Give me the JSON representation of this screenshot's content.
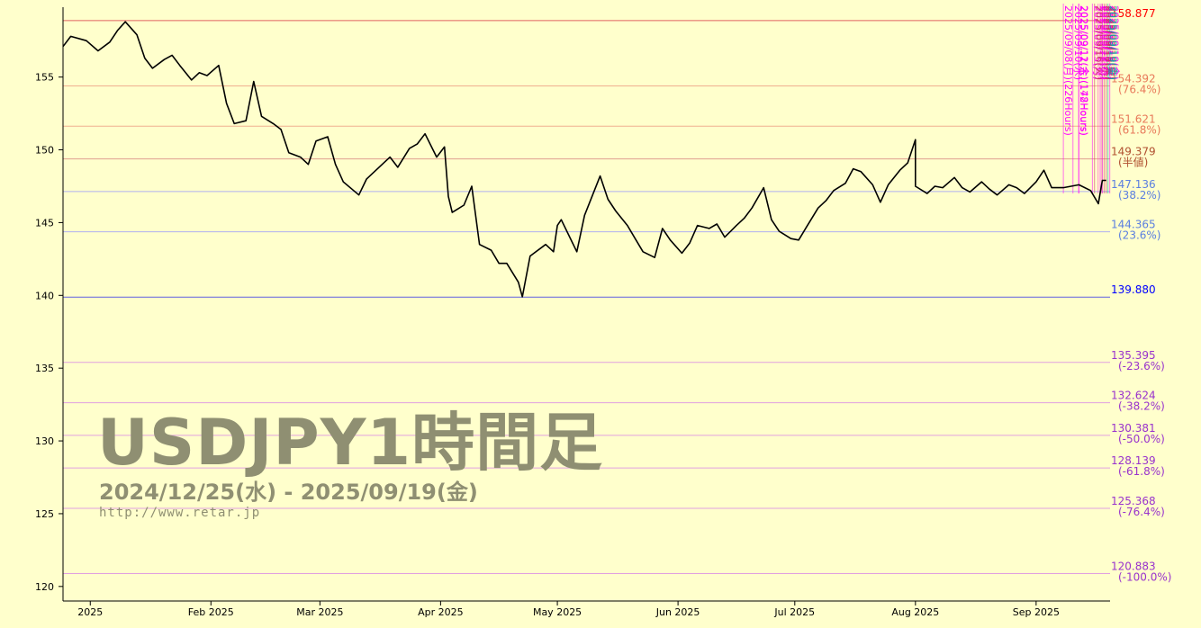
{
  "watermark": {
    "title": "USDJPY1時間足",
    "range": "2024/12/25(水) - 2025/09/19(金)",
    "url": "http://www.retar.jp"
  },
  "chart_data": {
    "type": "line",
    "series": [
      {
        "color": "#000000",
        "points": [
          [
            "2024-12-25",
            157.1
          ],
          [
            "2024-12-27",
            157.8
          ],
          [
            "2024-12-31",
            157.5
          ],
          [
            "2025-01-03",
            156.8
          ],
          [
            "2025-01-06",
            157.4
          ],
          [
            "2025-01-08",
            158.2
          ],
          [
            "2025-01-10",
            158.8
          ],
          [
            "2025-01-13",
            157.9
          ],
          [
            "2025-01-15",
            156.3
          ],
          [
            "2025-01-17",
            155.6
          ],
          [
            "2025-01-20",
            156.2
          ],
          [
            "2025-01-22",
            156.5
          ],
          [
            "2025-01-24",
            155.8
          ],
          [
            "2025-01-27",
            154.8
          ],
          [
            "2025-01-29",
            155.3
          ],
          [
            "2025-01-31",
            155.1
          ],
          [
            "2025-02-03",
            155.8
          ],
          [
            "2025-02-05",
            153.2
          ],
          [
            "2025-02-07",
            151.8
          ],
          [
            "2025-02-10",
            152.0
          ],
          [
            "2025-02-12",
            154.7
          ],
          [
            "2025-02-14",
            152.3
          ],
          [
            "2025-02-17",
            151.8
          ],
          [
            "2025-02-19",
            151.4
          ],
          [
            "2025-02-21",
            149.8
          ],
          [
            "2025-02-24",
            149.5
          ],
          [
            "2025-02-26",
            149.0
          ],
          [
            "2025-02-28",
            150.6
          ],
          [
            "2025-03-03",
            150.9
          ],
          [
            "2025-03-05",
            149.0
          ],
          [
            "2025-03-07",
            147.8
          ],
          [
            "2025-03-11",
            146.9
          ],
          [
            "2025-03-13",
            148.0
          ],
          [
            "2025-03-17",
            149.0
          ],
          [
            "2025-03-19",
            149.5
          ],
          [
            "2025-03-21",
            148.8
          ],
          [
            "2025-03-24",
            150.1
          ],
          [
            "2025-03-26",
            150.4
          ],
          [
            "2025-03-28",
            151.1
          ],
          [
            "2025-03-31",
            149.5
          ],
          [
            "2025-04-02",
            150.2
          ],
          [
            "2025-04-03",
            146.8
          ],
          [
            "2025-04-04",
            145.7
          ],
          [
            "2025-04-07",
            146.2
          ],
          [
            "2025-04-09",
            147.5
          ],
          [
            "2025-04-11",
            143.5
          ],
          [
            "2025-04-14",
            143.1
          ],
          [
            "2025-04-16",
            142.2
          ],
          [
            "2025-04-18",
            142.2
          ],
          [
            "2025-04-21",
            140.9
          ],
          [
            "2025-04-22",
            139.9
          ],
          [
            "2025-04-24",
            142.7
          ],
          [
            "2025-04-28",
            143.5
          ],
          [
            "2025-04-30",
            143.0
          ],
          [
            "2025-05-01",
            144.8
          ],
          [
            "2025-05-02",
            145.2
          ],
          [
            "2025-05-06",
            143.0
          ],
          [
            "2025-05-08",
            145.5
          ],
          [
            "2025-05-12",
            148.2
          ],
          [
            "2025-05-14",
            146.6
          ],
          [
            "2025-05-16",
            145.8
          ],
          [
            "2025-05-19",
            144.8
          ],
          [
            "2025-05-21",
            143.9
          ],
          [
            "2025-05-23",
            143.0
          ],
          [
            "2025-05-26",
            142.6
          ],
          [
            "2025-05-28",
            144.6
          ],
          [
            "2025-05-30",
            143.8
          ],
          [
            "2025-06-02",
            142.9
          ],
          [
            "2025-06-04",
            143.6
          ],
          [
            "2025-06-06",
            144.8
          ],
          [
            "2025-06-09",
            144.6
          ],
          [
            "2025-06-11",
            144.9
          ],
          [
            "2025-06-13",
            144.0
          ],
          [
            "2025-06-16",
            144.8
          ],
          [
            "2025-06-18",
            145.3
          ],
          [
            "2025-06-20",
            146.0
          ],
          [
            "2025-06-23",
            147.4
          ],
          [
            "2025-06-25",
            145.2
          ],
          [
            "2025-06-27",
            144.4
          ],
          [
            "2025-06-30",
            143.9
          ],
          [
            "2025-07-02",
            143.8
          ],
          [
            "2025-07-04",
            144.7
          ],
          [
            "2025-07-07",
            146.0
          ],
          [
            "2025-07-09",
            146.5
          ],
          [
            "2025-07-11",
            147.2
          ],
          [
            "2025-07-14",
            147.7
          ],
          [
            "2025-07-16",
            148.7
          ],
          [
            "2025-07-18",
            148.5
          ],
          [
            "2025-07-21",
            147.6
          ],
          [
            "2025-07-23",
            146.4
          ],
          [
            "2025-07-25",
            147.6
          ],
          [
            "2025-07-28",
            148.6
          ],
          [
            "2025-07-30",
            149.1
          ],
          [
            "2025-08-01",
            150.7
          ],
          [
            "2025-08-01",
            147.5
          ],
          [
            "2025-08-04",
            147.0
          ],
          [
            "2025-08-06",
            147.5
          ],
          [
            "2025-08-08",
            147.4
          ],
          [
            "2025-08-11",
            148.1
          ],
          [
            "2025-08-13",
            147.4
          ],
          [
            "2025-08-15",
            147.1
          ],
          [
            "2025-08-18",
            147.8
          ],
          [
            "2025-08-20",
            147.3
          ],
          [
            "2025-08-22",
            146.9
          ],
          [
            "2025-08-25",
            147.6
          ],
          [
            "2025-08-27",
            147.4
          ],
          [
            "2025-08-29",
            147.0
          ],
          [
            "2025-09-01",
            147.8
          ],
          [
            "2025-09-03",
            148.6
          ],
          [
            "2025-09-05",
            147.4
          ],
          [
            "2025-09-08",
            147.4
          ],
          [
            "2025-09-10",
            147.5
          ],
          [
            "2025-09-12",
            147.6
          ],
          [
            "2025-09-15",
            147.2
          ],
          [
            "2025-09-17",
            146.3
          ],
          [
            "2025-09-18",
            147.9
          ],
          [
            "2025-09-19",
            147.9
          ]
        ]
      }
    ],
    "x_range": [
      "2024-12-25",
      "2025-09-19"
    ],
    "x_ticks": [
      {
        "date": "2025-01-01",
        "label": "2025"
      },
      {
        "date": "2025-02-01",
        "label": "Feb 2025"
      },
      {
        "date": "2025-03-01",
        "label": "Mar 2025"
      },
      {
        "date": "2025-04-01",
        "label": "Apr 2025"
      },
      {
        "date": "2025-05-01",
        "label": "May 2025"
      },
      {
        "date": "2025-06-01",
        "label": "Jun 2025"
      },
      {
        "date": "2025-07-01",
        "label": "Jul 2025"
      },
      {
        "date": "2025-08-01",
        "label": "Aug 2025"
      },
      {
        "date": "2025-09-01",
        "label": "Sep 2025"
      }
    ],
    "ylim": [
      119.0,
      159.8
    ],
    "y_ticks": [
      120,
      125,
      130,
      135,
      140,
      145,
      150,
      155
    ],
    "fib_levels": [
      {
        "value": 158.877,
        "label": "158.877",
        "pct": "",
        "color": "#e06060",
        "textcolor": "#ff0000"
      },
      {
        "value": 154.392,
        "label": "154.392",
        "pct": "(76.4%)",
        "color": "#f0b090",
        "textcolor": "#e87a5a"
      },
      {
        "value": 151.621,
        "label": "151.621",
        "pct": "(61.8%)",
        "color": "#f0b090",
        "textcolor": "#e87a5a"
      },
      {
        "value": 149.379,
        "label": "149.379",
        "pct": "(半値)",
        "color": "#e0a090",
        "textcolor": "#b05030"
      },
      {
        "value": 147.136,
        "label": "147.136",
        "pct": "(38.2%)",
        "color": "#b0b0f0",
        "textcolor": "#5b7fe0"
      },
      {
        "value": 144.365,
        "label": "144.365",
        "pct": "(23.6%)",
        "color": "#b0b0f0",
        "textcolor": "#5b7fe0"
      },
      {
        "value": 139.88,
        "label": "139.880",
        "pct": "",
        "color": "#6060e0",
        "textcolor": "#0000ff"
      },
      {
        "value": 135.395,
        "label": "135.395",
        "pct": "(-23.6%)",
        "color": "#e0a0e0",
        "textcolor": "#9933cc"
      },
      {
        "value": 132.624,
        "label": "132.624",
        "pct": "(-38.2%)",
        "color": "#e0a0e0",
        "textcolor": "#9933cc"
      },
      {
        "value": 130.381,
        "label": "130.381",
        "pct": "(-50.0%)",
        "color": "#e0a0e0",
        "textcolor": "#9933cc"
      },
      {
        "value": 128.139,
        "label": "128.139",
        "pct": "(-61.8%)",
        "color": "#e0a0e0",
        "textcolor": "#9933cc"
      },
      {
        "value": 125.368,
        "label": "125.368",
        "pct": "(-76.4%)",
        "color": "#e0a0e0",
        "textcolor": "#9933cc"
      },
      {
        "value": 120.883,
        "label": "120.883",
        "pct": "(-100.0%)",
        "color": "#e0a0e0",
        "textcolor": "#9933cc"
      }
    ],
    "time_markers": [
      {
        "date": "2025-09-08",
        "label": "2025/09/08(月)(226Hours)",
        "color": "#ff00ff"
      },
      {
        "date": "2025-09-10",
        "label": "2025/09/10(水)",
        "color": "#ff00ff"
      },
      {
        "date": "2025-09-11",
        "label": "2025/09/11(木)(172Hours)",
        "color": "#ff00ff"
      },
      {
        "date": "2025-09-12",
        "label": "2025/09/12(金)(148Hours)",
        "color": "#ff00ff"
      },
      {
        "date": "2025-09-15",
        "label": "2025/09/15(月)",
        "color": "#ff00ff"
      },
      {
        "date": "2025-09-16",
        "label": "2025/09/16(火)",
        "color": "#ff33cc"
      },
      {
        "date": "2025-09-16",
        "label": "2025/09/16(火)",
        "color": "#cc3366"
      },
      {
        "date": "2025-09-17",
        "label": "2025/09/17(水)",
        "color": "#ff00ff"
      },
      {
        "date": "2025-09-17",
        "label": "2025/09/17(水)",
        "color": "#cc3366"
      },
      {
        "date": "2025-09-18",
        "label": "2025/09/18(木)",
        "color": "#ff00ff"
      },
      {
        "date": "2025-09-18",
        "label": "2025/09/18(木)",
        "color": "#cc3366"
      },
      {
        "date": "2025-09-19",
        "label": "2025/09/19(金)",
        "color": "#ff00ff"
      },
      {
        "date": "2025-09-19",
        "label": "2025/09/19(金)",
        "color": "#cc3366"
      },
      {
        "date": "2025-09-19",
        "label": "2025/09/19(金)",
        "color": "#00aaaa"
      }
    ]
  }
}
